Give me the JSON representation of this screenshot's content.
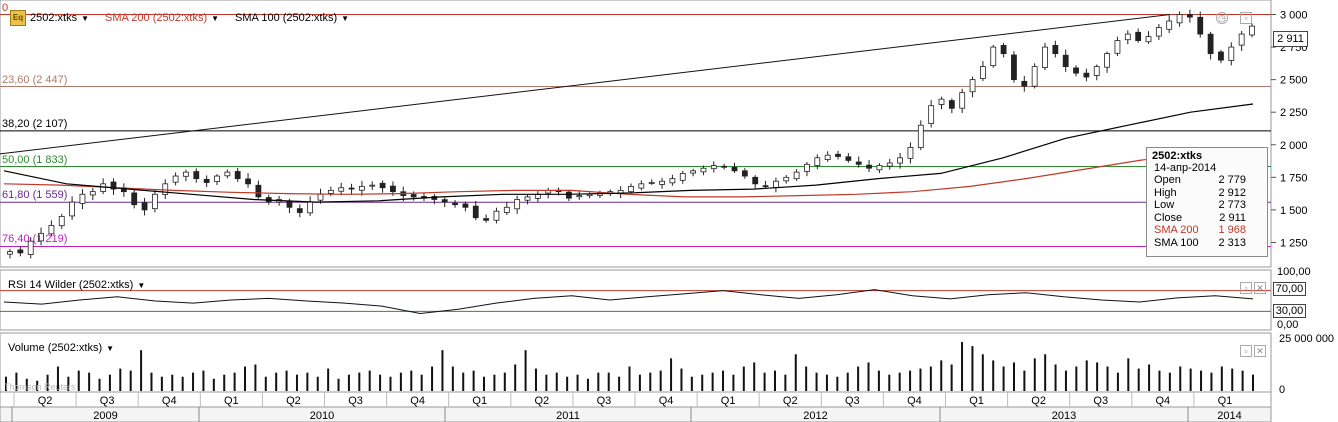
{
  "header": {
    "symbol": "2502:xtks",
    "sma200": "SMA 200 (2502:xtks)",
    "sma100": "SMA 100 (2502:xtks)",
    "icon": "eq-icon",
    "colors": {
      "sma200": "#c0392b",
      "sma100": "#000000"
    }
  },
  "fib": [
    {
      "label": "0",
      "value": 3000,
      "color": "#c0392b"
    },
    {
      "label": "23,60 (2 447)",
      "value": 2447,
      "color": "#b07a6a"
    },
    {
      "label": "38,20 (2 107)",
      "value": 2107,
      "color": "#000000"
    },
    {
      "label": "50,00 (1 833)",
      "value": 1833,
      "color": "#2e8b2e"
    },
    {
      "label": "61,80 (1 559)",
      "value": 1559,
      "color": "#6a2a8a"
    },
    {
      "label": "76,40 (1 219)",
      "value": 1219,
      "color": "#c020c0"
    }
  ],
  "price_badge": "2 911",
  "infobox": {
    "title": "2502:xtks",
    "date": "14-апр-2014",
    "rows": [
      {
        "k": "Open",
        "v": "2 779"
      },
      {
        "k": "High",
        "v": "2 912"
      },
      {
        "k": "Low",
        "v": "2 773"
      },
      {
        "k": "Close",
        "v": "2 911"
      },
      {
        "k": "SMA 200",
        "v": "1 968"
      },
      {
        "k": "SMA 100",
        "v": "2 313"
      }
    ]
  },
  "rsi": {
    "label": "RSI 14 Wilder (2502:xtks)",
    "ticks": [
      "100,00",
      "0,00"
    ],
    "upper_badge": "70,00",
    "lower_badge": "30,00",
    "overbought": 70,
    "oversold": 30
  },
  "volume": {
    "label": "Volume (2502:xtks)",
    "tick": "25 000 000",
    "zero": "0"
  },
  "watermark": "Thomson Reuters",
  "timeline": {
    "quarters": [
      "Q2",
      "Q3",
      "Q4",
      "Q1",
      "Q2",
      "Q3",
      "Q4",
      "Q1",
      "Q2",
      "Q3",
      "Q4",
      "Q1",
      "Q2",
      "Q3",
      "Q4",
      "Q1",
      "Q2",
      "Q3",
      "Q4",
      "Q1"
    ],
    "years": [
      "2009",
      "2010",
      "2011",
      "2012",
      "2013",
      "2014"
    ]
  },
  "chart_data": {
    "type": "candlestick",
    "x_range": [
      "2009-04",
      "2014-04"
    ],
    "y_ticks": [
      "3 000",
      "2 750",
      "2 500",
      "2 250",
      "2 000",
      "1 750",
      "1 500",
      "1 250"
    ],
    "ylim": [
      1100,
      3050
    ],
    "close_approx": [
      1180,
      1170,
      1260,
      1320,
      1380,
      1450,
      1560,
      1620,
      1640,
      1700,
      1660,
      1640,
      1540,
      1500,
      1620,
      1700,
      1760,
      1790,
      1740,
      1710,
      1760,
      1790,
      1740,
      1700,
      1600,
      1560,
      1580,
      1520,
      1480,
      1560,
      1620,
      1650,
      1670,
      1660,
      1680,
      1690,
      1670,
      1640,
      1610,
      1600,
      1590,
      1580,
      1560,
      1540,
      1520,
      1440,
      1420,
      1490,
      1520,
      1580,
      1600,
      1620,
      1650,
      1640,
      1590,
      1610,
      1620,
      1630,
      1640,
      1650,
      1680,
      1700,
      1710,
      1720,
      1740,
      1780,
      1800,
      1820,
      1840,
      1830,
      1800,
      1760,
      1700,
      1680,
      1720,
      1750,
      1790,
      1850,
      1900,
      1920,
      1910,
      1880,
      1850,
      1820,
      1840,
      1860,
      1900,
      1980,
      2150,
      2300,
      2350,
      2280,
      2400,
      2500,
      2600,
      2750,
      2700,
      2500,
      2450,
      2600,
      2750,
      2700,
      2600,
      2550,
      2520,
      2600,
      2700,
      2800,
      2850,
      2800,
      2830,
      2900,
      2950,
      3000,
      2980,
      2850,
      2700,
      2650,
      2750,
      2850,
      2911
    ],
    "sma200_approx": [
      1700,
      1690,
      1670,
      1650,
      1635,
      1625,
      1620,
      1625,
      1640,
      1650,
      1650,
      1620,
      1600,
      1600,
      1610,
      1620,
      1640,
      1680,
      1740,
      1810,
      1880,
      1940,
      1968
    ],
    "sma100_approx": [
      1800,
      1700,
      1660,
      1620,
      1580,
      1560,
      1570,
      1600,
      1620,
      1620,
      1630,
      1650,
      1660,
      1690,
      1740,
      1780,
      1900,
      2050,
      2150,
      2250,
      2313
    ],
    "trendline": {
      "from": 1930,
      "to": 3000
    },
    "rsi_approx": [
      48,
      44,
      52,
      58,
      50,
      46,
      52,
      55,
      50,
      46,
      40,
      26,
      34,
      46,
      55,
      60,
      52,
      58,
      64,
      70,
      62,
      55,
      62,
      72,
      60,
      54,
      62,
      66,
      58,
      52,
      48,
      56,
      60,
      54
    ],
    "volume_approx": [
      7,
      9,
      6,
      5,
      8,
      12,
      7,
      10,
      9,
      6,
      8,
      11,
      10,
      20,
      9,
      7,
      8,
      7,
      9,
      10,
      6,
      8,
      9,
      12,
      13,
      7,
      9,
      10,
      8,
      9,
      7,
      11,
      6,
      8,
      9,
      10,
      8,
      7,
      9,
      10,
      8,
      12,
      20,
      12,
      9,
      10,
      7,
      8,
      9,
      13,
      20,
      11,
      8,
      9,
      7,
      8,
      6,
      9,
      9,
      7,
      12,
      8,
      9,
      10,
      16,
      11,
      7,
      8,
      9,
      10,
      8,
      12,
      14,
      9,
      10,
      8,
      18,
      12,
      9,
      8,
      7,
      9,
      12,
      14,
      10,
      8,
      9,
      10,
      11,
      12,
      15,
      13,
      24,
      22,
      18,
      15,
      12,
      14,
      10,
      16,
      18,
      13,
      10,
      12,
      15,
      14,
      12,
      9,
      16,
      11,
      13,
      10,
      9,
      12,
      11,
      10,
      9,
      12,
      11,
      10,
      8
    ]
  }
}
